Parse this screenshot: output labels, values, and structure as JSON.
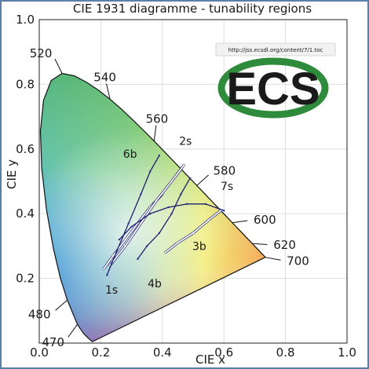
{
  "chart_data": {
    "type": "scatter",
    "title": "CIE 1931 diagramme - tunability regions",
    "xlabel": "CIE x",
    "ylabel": "CIE y",
    "xlim": [
      0.0,
      1.0
    ],
    "ylim": [
      0.0,
      1.0
    ],
    "x_ticks": [
      "0.0",
      "0.2",
      "0.4",
      "0.6",
      "0.8",
      "1.0"
    ],
    "y_ticks": [
      "0.2",
      "0.4",
      "0.6",
      "0.8",
      "1.0"
    ],
    "grid": true,
    "wavelength_labels": [
      {
        "label": "470",
        "x": 0.124,
        "y": 0.058
      },
      {
        "label": "480",
        "x": 0.091,
        "y": 0.133
      },
      {
        "label": "520",
        "x": 0.074,
        "y": 0.834
      },
      {
        "label": "540",
        "x": 0.23,
        "y": 0.754
      },
      {
        "label": "560",
        "x": 0.373,
        "y": 0.624
      },
      {
        "label": "580",
        "x": 0.512,
        "y": 0.487
      },
      {
        "label": "600",
        "x": 0.627,
        "y": 0.372
      },
      {
        "label": "620",
        "x": 0.691,
        "y": 0.308
      },
      {
        "label": "700",
        "x": 0.735,
        "y": 0.265
      }
    ],
    "spectral_locus": [
      [
        0.1741,
        0.005
      ],
      [
        0.1733,
        0.0048
      ],
      [
        0.1726,
        0.0048
      ],
      [
        0.1714,
        0.0051
      ],
      [
        0.1689,
        0.0069
      ],
      [
        0.1644,
        0.0109
      ],
      [
        0.1566,
        0.0177
      ],
      [
        0.144,
        0.0297
      ],
      [
        0.1241,
        0.0578
      ],
      [
        0.0913,
        0.1327
      ],
      [
        0.0687,
        0.2007
      ],
      [
        0.0454,
        0.295
      ],
      [
        0.0235,
        0.4127
      ],
      [
        0.0082,
        0.5384
      ],
      [
        0.0039,
        0.6548
      ],
      [
        0.0139,
        0.7502
      ],
      [
        0.0389,
        0.812
      ],
      [
        0.0743,
        0.8338
      ],
      [
        0.1142,
        0.8262
      ],
      [
        0.1547,
        0.8059
      ],
      [
        0.1929,
        0.7816
      ],
      [
        0.2296,
        0.7543
      ],
      [
        0.2658,
        0.7243
      ],
      [
        0.3016,
        0.6923
      ],
      [
        0.3373,
        0.6589
      ],
      [
        0.3731,
        0.6245
      ],
      [
        0.4087,
        0.5896
      ],
      [
        0.4441,
        0.5547
      ],
      [
        0.4788,
        0.5202
      ],
      [
        0.5125,
        0.4866
      ],
      [
        0.5448,
        0.4544
      ],
      [
        0.5752,
        0.4242
      ],
      [
        0.6029,
        0.3965
      ],
      [
        0.627,
        0.3725
      ],
      [
        0.6482,
        0.3514
      ],
      [
        0.6658,
        0.334
      ],
      [
        0.6801,
        0.3197
      ],
      [
        0.6915,
        0.3083
      ],
      [
        0.7006,
        0.2993
      ],
      [
        0.7079,
        0.292
      ],
      [
        0.714,
        0.2859
      ],
      [
        0.719,
        0.2809
      ],
      [
        0.723,
        0.277
      ],
      [
        0.726,
        0.274
      ],
      [
        0.7283,
        0.2717
      ],
      [
        0.73,
        0.27
      ],
      [
        0.7347,
        0.2653
      ]
    ],
    "regions": [
      {
        "name": "1s",
        "points": [
          [
            0.21,
            0.23
          ],
          [
            0.24,
            0.27
          ],
          [
            0.28,
            0.32
          ],
          [
            0.32,
            0.37
          ],
          [
            0.36,
            0.42
          ],
          [
            0.4,
            0.46
          ]
        ]
      },
      {
        "name": "2s",
        "points": [
          [
            0.23,
            0.24
          ],
          [
            0.28,
            0.3
          ],
          [
            0.33,
            0.37
          ],
          [
            0.38,
            0.44
          ],
          [
            0.43,
            0.5
          ],
          [
            0.47,
            0.55
          ]
        ]
      },
      {
        "name": "3b",
        "points": [
          [
            0.41,
            0.28
          ],
          [
            0.45,
            0.31
          ],
          [
            0.5,
            0.34
          ],
          [
            0.55,
            0.38
          ],
          [
            0.59,
            0.41
          ]
        ]
      },
      {
        "name": "4b",
        "points": [
          [
            0.32,
            0.26
          ],
          [
            0.35,
            0.3
          ],
          [
            0.39,
            0.34
          ],
          [
            0.43,
            0.4
          ],
          [
            0.46,
            0.46
          ],
          [
            0.49,
            0.51
          ]
        ]
      },
      {
        "name": "6b",
        "points": [
          [
            0.22,
            0.21
          ],
          [
            0.25,
            0.28
          ],
          [
            0.29,
            0.37
          ],
          [
            0.33,
            0.46
          ],
          [
            0.36,
            0.53
          ],
          [
            0.39,
            0.58
          ]
        ]
      },
      {
        "name": "7s",
        "points": [
          [
            0.26,
            0.32
          ],
          [
            0.3,
            0.36
          ],
          [
            0.36,
            0.4
          ],
          [
            0.42,
            0.42
          ],
          [
            0.48,
            0.43
          ],
          [
            0.54,
            0.43
          ],
          [
            0.6,
            0.41
          ]
        ]
      }
    ],
    "annotations": [
      {
        "label": "1s",
        "x": 0.235,
        "y": 0.165
      },
      {
        "label": "2s",
        "x": 0.475,
        "y": 0.625
      },
      {
        "label": "3b",
        "x": 0.52,
        "y": 0.3
      },
      {
        "label": "4b",
        "x": 0.375,
        "y": 0.185
      },
      {
        "label": "6b",
        "x": 0.295,
        "y": 0.585
      },
      {
        "label": "7s",
        "x": 0.61,
        "y": 0.485
      }
    ]
  },
  "watermark": {
    "url": "http://jss.ecsdl.org/content/7/1.toc",
    "logo_text": "ECS",
    "logo_color": "#1f4e9a",
    "ring_color": "#2e8b3c"
  }
}
